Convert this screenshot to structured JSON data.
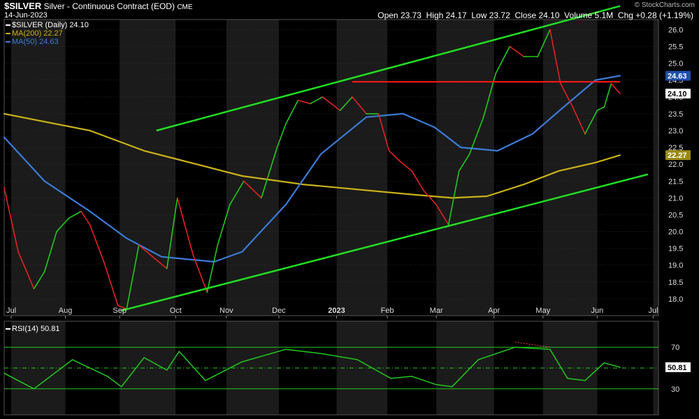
{
  "header": {
    "symbol": "$SILVER",
    "title": "Silver - Continuous Contract (EOD)",
    "exchange": "CME",
    "date": "14-Jun-2023",
    "open_label": "Open",
    "open": "23.73",
    "high_label": "High",
    "high": "24.17",
    "low_label": "Low",
    "low": "23.72",
    "close_label": "Close",
    "close": "24.10",
    "volume_label": "Volume",
    "volume": "5.1M",
    "chg_label": "Chg",
    "chg": "+0.28 (+1.19%)",
    "watermark": "© StockCharts.com"
  },
  "legend": {
    "price": "$SILVER (Daily) 24.10",
    "ma200": "MA(200) 22.27",
    "ma50": "MA(50) 24.63",
    "rsi": "RSI(14) 50.81"
  },
  "colors": {
    "background": "#000000",
    "band": "#1b1b1b",
    "grid": "#3a3a3a",
    "up": "#22c91e",
    "down": "#e22222",
    "ma200": "#c9b21a",
    "ma50": "#3b7bd8",
    "trend": "#22dd22",
    "resistance": "#ff1a1a",
    "rsi": "#22c91e",
    "rsi_level": "#22c91e",
    "divergence": "#ff4444"
  },
  "chart_data": [
    {
      "type": "line",
      "title": "$SILVER (Daily)",
      "x_ticks": [
        "Jul",
        "Aug",
        "Sep",
        "Oct",
        "Nov",
        "Dec",
        "2023",
        "Feb",
        "Mar",
        "Apr",
        "May",
        "Jun",
        "Jul"
      ],
      "y_ticks": [
        "26.0",
        "25.5",
        "25.0",
        "24.5",
        "24.0",
        "23.5",
        "23.0",
        "22.5",
        "22.0",
        "21.5",
        "21.0",
        "20.5",
        "20.0",
        "19.5",
        "19.0",
        "18.5",
        "18.0"
      ],
      "ylim": [
        17.5,
        26.3
      ],
      "xlim": [
        "2022-06-27",
        "2023-07-06"
      ],
      "grid": true,
      "legend_position": "top-left",
      "price_label": "24.10",
      "ma200_label": "22.27",
      "ma50_label": "24.63",
      "series": [
        {
          "name": "$SILVER (Daily)",
          "x": [
            "2022-06-27",
            "2022-07-05",
            "2022-07-14",
            "2022-07-20",
            "2022-07-27",
            "2022-08-03",
            "2022-08-10",
            "2022-08-15",
            "2022-08-23",
            "2022-08-31",
            "2022-09-05",
            "2022-09-12",
            "2022-09-21",
            "2022-09-28",
            "2022-10-04",
            "2022-10-13",
            "2022-10-21",
            "2022-10-27",
            "2022-11-03",
            "2022-11-11",
            "2022-11-21",
            "2022-11-30",
            "2022-12-05",
            "2022-12-12",
            "2022-12-19",
            "2022-12-26",
            "2023-01-05",
            "2023-01-12",
            "2023-01-20",
            "2023-01-27",
            "2023-02-02",
            "2023-02-08",
            "2023-02-15",
            "2023-02-22",
            "2023-03-01",
            "2023-03-08",
            "2023-03-14",
            "2023-03-20",
            "2023-03-28",
            "2023-04-04",
            "2023-04-12",
            "2023-04-20",
            "2023-04-28",
            "2023-05-05",
            "2023-05-11",
            "2023-05-18",
            "2023-05-25",
            "2023-06-01",
            "2023-06-05",
            "2023-06-09",
            "2023-06-14"
          ],
          "values": [
            21.3,
            19.4,
            18.3,
            18.8,
            20.0,
            20.4,
            20.6,
            20.2,
            19.1,
            17.8,
            17.7,
            19.6,
            19.2,
            18.9,
            21.0,
            19.3,
            18.2,
            19.6,
            20.8,
            21.5,
            21.0,
            22.5,
            23.2,
            23.9,
            23.8,
            24.0,
            23.6,
            24.0,
            23.5,
            23.5,
            22.4,
            22.1,
            21.8,
            21.2,
            20.8,
            20.2,
            21.8,
            22.3,
            23.4,
            24.7,
            25.5,
            25.2,
            25.2,
            26.0,
            24.4,
            23.7,
            22.9,
            23.6,
            23.7,
            24.4,
            24.1
          ]
        },
        {
          "name": "MA(200)",
          "x": [
            "2022-06-27",
            "2022-08-15",
            "2022-09-15",
            "2022-10-15",
            "2022-11-10",
            "2022-12-15",
            "2023-01-15",
            "2023-02-15",
            "2023-03-10",
            "2023-03-30",
            "2023-04-20",
            "2023-05-10",
            "2023-05-31",
            "2023-06-14"
          ],
          "values": [
            23.5,
            23.0,
            22.4,
            22.0,
            21.65,
            21.4,
            21.25,
            21.1,
            21.0,
            21.05,
            21.4,
            21.8,
            22.05,
            22.27
          ]
        },
        {
          "name": "MA(50)",
          "x": [
            "2022-06-27",
            "2022-07-20",
            "2022-08-15",
            "2022-09-05",
            "2022-09-25",
            "2022-10-25",
            "2022-11-10",
            "2022-12-05",
            "2022-12-25",
            "2023-01-20",
            "2023-02-10",
            "2023-02-28",
            "2023-03-15",
            "2023-04-05",
            "2023-04-25",
            "2023-05-15",
            "2023-05-31",
            "2023-06-14"
          ],
          "values": [
            22.8,
            21.5,
            20.6,
            19.8,
            19.25,
            19.1,
            19.4,
            20.8,
            22.3,
            23.4,
            23.5,
            23.1,
            22.5,
            22.4,
            22.9,
            23.8,
            24.5,
            24.63
          ]
        }
      ]
    },
    {
      "type": "line",
      "title": "RSI(14)",
      "y_ticks": [
        "70",
        "50",
        "30"
      ],
      "ylim": [
        5,
        95
      ],
      "levels": [
        30,
        70
      ],
      "value_label": "50.81",
      "series": [
        {
          "name": "RSI(14)",
          "x": [
            "2022-06-27",
            "2022-07-14",
            "2022-08-05",
            "2022-08-25",
            "2022-09-02",
            "2022-09-15",
            "2022-09-28",
            "2022-10-05",
            "2022-10-20",
            "2022-11-10",
            "2022-12-05",
            "2022-12-25",
            "2023-01-15",
            "2023-02-03",
            "2023-02-15",
            "2023-03-01",
            "2023-03-10",
            "2023-03-25",
            "2023-04-15",
            "2023-05-05",
            "2023-05-15",
            "2023-05-25",
            "2023-06-05",
            "2023-06-14"
          ],
          "values": [
            45,
            30,
            58,
            42,
            32,
            60,
            48,
            66,
            38,
            56,
            68,
            64,
            58,
            40,
            42,
            34,
            32,
            58,
            70,
            68,
            40,
            38,
            55,
            50.81
          ]
        }
      ]
    }
  ]
}
